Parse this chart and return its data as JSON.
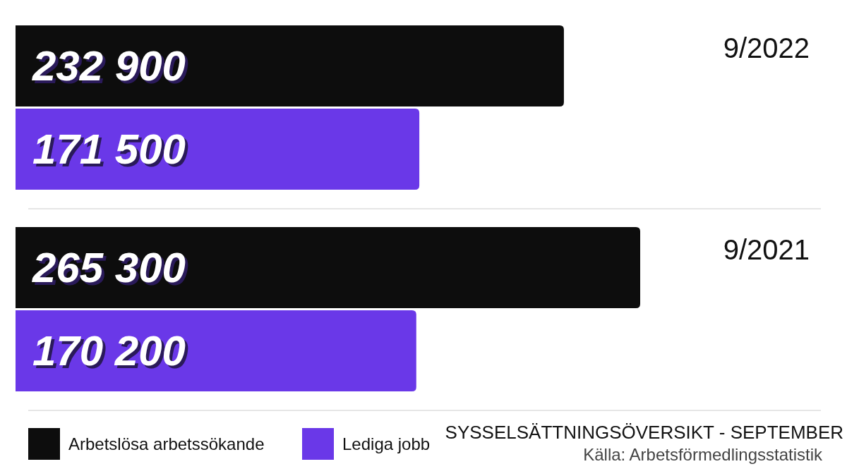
{
  "chart_data": [
    {
      "type": "bar",
      "orientation": "horizontal",
      "categories": [
        "9/2022"
      ],
      "series": [
        {
          "color": "#0d0d0d",
          "values": [
            232900
          ],
          "value_labels": [
            "232 900"
          ]
        },
        {
          "color": "#6a38e8",
          "values": [
            171500
          ],
          "value_labels": [
            "171 500"
          ]
        }
      ]
    },
    {
      "type": "bar",
      "orientation": "horizontal",
      "title": "SYSSELSÄTTNINGSÖVERSIKT - SEPTEMBER",
      "annotations": [
        "Källa: Arbetsförmedlingsstatistik"
      ],
      "categories": [
        "9/2021"
      ],
      "series": [
        {
          "name": "Arbetslösa arbetssökande",
          "color": "#0d0d0d",
          "values": [
            265300
          ],
          "value_labels": [
            "265 300"
          ]
        },
        {
          "name": "Lediga jobb",
          "color": "#6a38e8",
          "values": [
            170200
          ],
          "value_labels": [
            "170 200"
          ]
        }
      ],
      "legend": "bottom left"
    }
  ]
}
